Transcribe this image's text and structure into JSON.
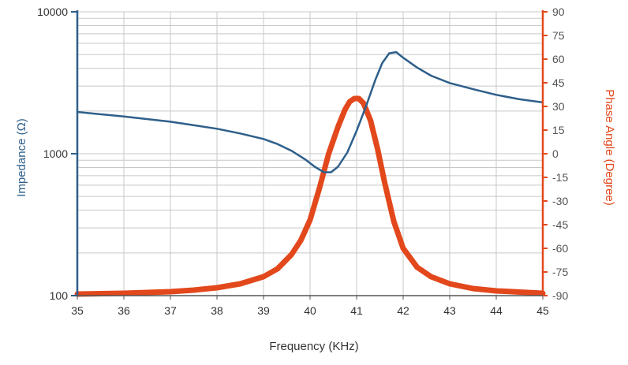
{
  "chart_data": {
    "type": "line",
    "title": "",
    "xlabel": "Frequency (KHz)",
    "ylabel_left": "Impedance (Ω)",
    "ylabel_right": "Phase Angle (Degree)",
    "xlim": [
      35,
      45
    ],
    "x_ticks": [
      "35",
      "36",
      "37",
      "38",
      "39",
      "40",
      "41",
      "42",
      "43",
      "44",
      "45"
    ],
    "y_left_scale": "log",
    "y_left_lim": [
      100,
      10000
    ],
    "y_left_ticks": [
      "100",
      "1000",
      "10000"
    ],
    "y_right_lim": [
      -90,
      90
    ],
    "y_right_ticks": [
      "90",
      "75",
      "60",
      "45",
      "30",
      "15",
      "0",
      "-15",
      "-30",
      "-45",
      "-60",
      "-75",
      "-90"
    ],
    "grid": true,
    "colors": {
      "impedance": "#2e5f8a",
      "phase": "#e2481c",
      "grid": "#c8c8c8"
    },
    "series": [
      {
        "axis": "left",
        "x": [
          35,
          36,
          37,
          38,
          38.5,
          39,
          39.3,
          39.6,
          39.9,
          40.1,
          40.3,
          40.45,
          40.6,
          40.8,
          41,
          41.2,
          41.4,
          41.55,
          41.7,
          41.85,
          42,
          42.3,
          42.6,
          43,
          43.5,
          44,
          44.5,
          45
        ],
        "values": [
          1970,
          1830,
          1680,
          1500,
          1390,
          1270,
          1170,
          1050,
          910,
          810,
          740,
          740,
          810,
          1020,
          1450,
          2150,
          3300,
          4350,
          5100,
          5200,
          4750,
          4050,
          3550,
          3150,
          2850,
          2600,
          2420,
          2300
        ]
      },
      {
        "axis": "right",
        "x": [
          35,
          36,
          37,
          37.5,
          38,
          38.5,
          39,
          39.3,
          39.6,
          39.8,
          40,
          40.2,
          40.4,
          40.6,
          40.75,
          40.85,
          40.95,
          41.05,
          41.15,
          41.3,
          41.45,
          41.6,
          41.8,
          42,
          42.3,
          42.6,
          43,
          43.5,
          44,
          45
        ],
        "values": [
          -89,
          -88.5,
          -87.5,
          -86.5,
          -85,
          -82.5,
          -78,
          -73,
          -64,
          -55,
          -42,
          -22,
          0,
          17,
          28,
          33,
          35,
          35,
          32,
          21,
          3,
          -18,
          -43,
          -60,
          -72,
          -78,
          -82.5,
          -85.5,
          -87,
          -88.5
        ]
      }
    ]
  }
}
